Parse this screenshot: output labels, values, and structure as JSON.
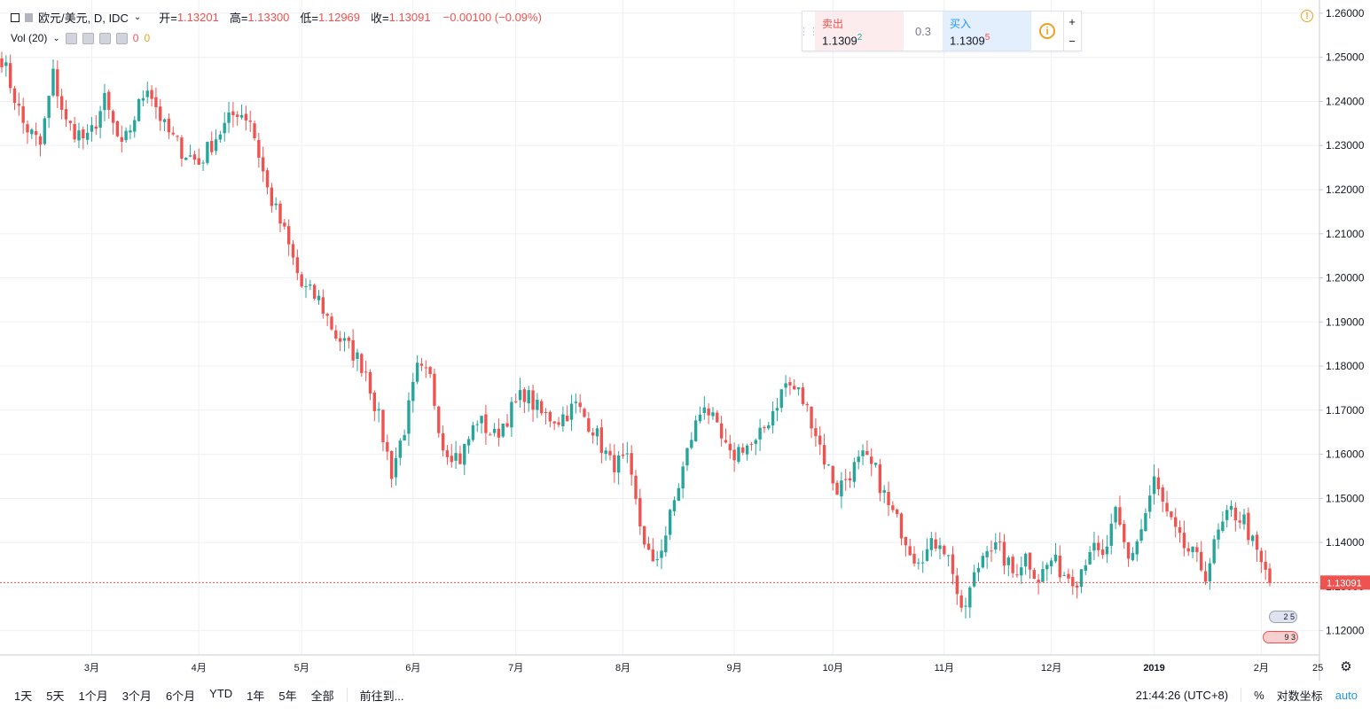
{
  "legend": {
    "symbol": "欧元/美元, D, IDC",
    "open_label": "开=",
    "open": "1.13201",
    "high_label": "高=",
    "high": "1.13300",
    "low_label": "低=",
    "low": "1.12969",
    "close_label": "收=",
    "close": "1.13091",
    "change": "−0.00100 (−0.09%)",
    "vol_label": "Vol (20)",
    "vol_val1": "0",
    "vol_val2": "0"
  },
  "trade_panel": {
    "sell_label": "卖出",
    "sell_price": "1.1309",
    "sell_sup": "2",
    "spread": "0.3",
    "buy_label": "买入",
    "buy_price": "1.1309",
    "buy_sup": "5",
    "info": "i",
    "zoom_in": "+",
    "zoom_out": "−"
  },
  "badges": {
    "b1": "2 5",
    "b2": "9 3"
  },
  "bottom": {
    "ranges": [
      "1天",
      "5天",
      "1个月",
      "3个月",
      "6个月",
      "YTD",
      "1年",
      "5年",
      "全部"
    ],
    "goto": "前往到...",
    "time": "21:44:26 (UTC+8)",
    "percent": "%",
    "log": "对数坐标",
    "auto": "auto"
  },
  "colors": {
    "up": "#26a69a",
    "down": "#ef5350",
    "grid": "#eef0f3",
    "axis": "#131722"
  },
  "chart_data": {
    "type": "candlestick",
    "symbol": "EUR/USD",
    "y_ticks": [
      "1.26000",
      "1.25000",
      "1.24000",
      "1.23000",
      "1.22000",
      "1.21000",
      "1.20000",
      "1.19000",
      "1.18000",
      "1.17000",
      "1.16000",
      "1.15000",
      "1.14000",
      "1.13000",
      "1.12000"
    ],
    "ylim": [
      1.1145,
      1.263
    ],
    "x_labels": [
      "3月",
      "4月",
      "5月",
      "6月",
      "7月",
      "8月",
      "9月",
      "10月",
      "11月",
      "12月",
      "2019",
      "2月",
      "25"
    ],
    "last_price_label": "1.13091",
    "last_price": 1.13091,
    "anchors": [
      [
        0,
        1.25
      ],
      [
        5,
        1.235
      ],
      [
        9,
        1.23
      ],
      [
        12,
        1.246
      ],
      [
        15,
        1.235
      ],
      [
        20,
        1.231
      ],
      [
        24,
        1.24
      ],
      [
        28,
        1.229
      ],
      [
        34,
        1.244
      ],
      [
        38,
        1.234
      ],
      [
        42,
        1.229
      ],
      [
        46,
        1.226
      ],
      [
        50,
        1.232
      ],
      [
        55,
        1.238
      ],
      [
        58,
        1.236
      ],
      [
        62,
        1.22
      ],
      [
        66,
        1.21
      ],
      [
        70,
        1.198
      ],
      [
        74,
        1.195
      ],
      [
        78,
        1.187
      ],
      [
        82,
        1.183
      ],
      [
        85,
        1.179
      ],
      [
        88,
        1.168
      ],
      [
        91,
        1.156
      ],
      [
        94,
        1.166
      ],
      [
        97,
        1.179
      ],
      [
        100,
        1.177
      ],
      [
        103,
        1.162
      ],
      [
        107,
        1.159
      ],
      [
        111,
        1.168
      ],
      [
        115,
        1.164
      ],
      [
        119,
        1.17
      ],
      [
        122,
        1.174
      ],
      [
        126,
        1.169
      ],
      [
        130,
        1.168
      ],
      [
        134,
        1.171
      ],
      [
        138,
        1.166
      ],
      [
        142,
        1.158
      ],
      [
        146,
        1.158
      ],
      [
        149,
        1.144
      ],
      [
        152,
        1.134
      ],
      [
        155,
        1.142
      ],
      [
        158,
        1.153
      ],
      [
        161,
        1.164
      ],
      [
        164,
        1.172
      ],
      [
        167,
        1.165
      ],
      [
        170,
        1.159
      ],
      [
        173,
        1.162
      ],
      [
        176,
        1.162
      ],
      [
        180,
        1.17
      ],
      [
        183,
        1.176
      ],
      [
        186,
        1.174
      ],
      [
        189,
        1.168
      ],
      [
        192,
        1.159
      ],
      [
        195,
        1.152
      ],
      [
        198,
        1.156
      ],
      [
        201,
        1.159
      ],
      [
        204,
        1.156
      ],
      [
        207,
        1.148
      ],
      [
        210,
        1.143
      ],
      [
        213,
        1.137
      ],
      [
        216,
        1.138
      ],
      [
        219,
        1.141
      ],
      [
        222,
        1.134
      ],
      [
        224,
        1.123
      ],
      [
        227,
        1.132
      ],
      [
        230,
        1.14
      ],
      [
        233,
        1.138
      ],
      [
        236,
        1.133
      ],
      [
        239,
        1.137
      ],
      [
        242,
        1.132
      ],
      [
        245,
        1.136
      ],
      [
        248,
        1.133
      ],
      [
        251,
        1.132
      ],
      [
        254,
        1.139
      ],
      [
        257,
        1.136
      ],
      [
        260,
        1.146
      ],
      [
        263,
        1.136
      ],
      [
        266,
        1.143
      ],
      [
        269,
        1.154
      ],
      [
        272,
        1.146
      ],
      [
        275,
        1.14
      ],
      [
        278,
        1.137
      ],
      [
        281,
        1.133
      ],
      [
        284,
        1.142
      ],
      [
        287,
        1.147
      ],
      [
        290,
        1.145
      ],
      [
        293,
        1.137
      ],
      [
        296,
        1.1308
      ]
    ],
    "num_bars": 297,
    "grid": true
  }
}
